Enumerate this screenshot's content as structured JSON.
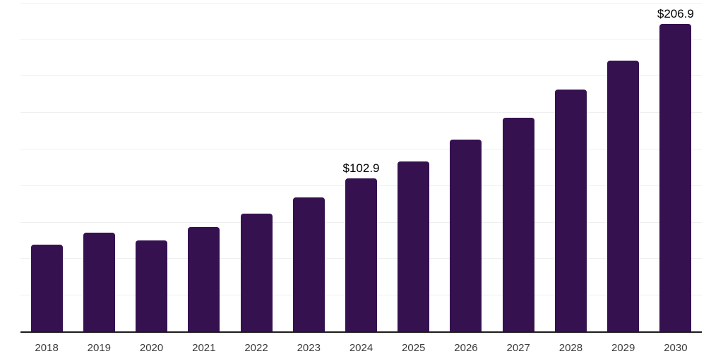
{
  "chart_data": {
    "type": "bar",
    "title": "",
    "xlabel": "",
    "ylabel": "",
    "categories": [
      "2018",
      "2019",
      "2020",
      "2021",
      "2022",
      "2023",
      "2024",
      "2025",
      "2026",
      "2027",
      "2028",
      "2029",
      "2030"
    ],
    "values": [
      58.3,
      66.4,
      61.1,
      70.2,
      79.2,
      90.1,
      102.9,
      114.2,
      129.3,
      143.8,
      162.7,
      182.4,
      206.9
    ],
    "data_labels": [
      "",
      "",
      "",
      "",
      "",
      "",
      "$102.9",
      "",
      "",
      "",
      "",
      "",
      "$206.9"
    ],
    "ylim": [
      0,
      223
    ],
    "gridlines": "horizontal, unlabeled, light gray, 9 lines",
    "legend": "none",
    "currency_prefix": "$"
  },
  "colors": {
    "bar": "#361150",
    "background": "#ffffff",
    "gridline": "#efefef",
    "axis_line": "#1b1b1b",
    "x_label_text": "#3c3c3c",
    "data_label_text": "#000000"
  }
}
